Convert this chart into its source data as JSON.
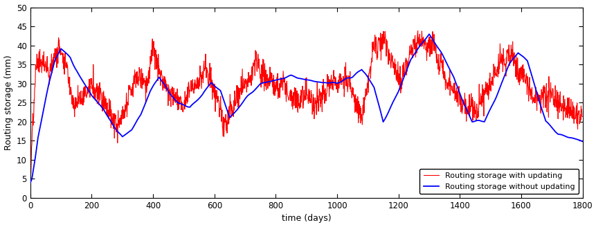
{
  "xlabel": "time (days)",
  "ylabel": "Routing storage (mm)",
  "xlim": [
    0,
    1800
  ],
  "ylim": [
    0,
    50
  ],
  "xticks": [
    0,
    200,
    400,
    600,
    800,
    1000,
    1200,
    1400,
    1600,
    1800
  ],
  "yticks": [
    0,
    5,
    10,
    15,
    20,
    25,
    30,
    35,
    40,
    45,
    50
  ],
  "blue_color": "#0000FF",
  "red_color": "#FF0000",
  "legend_blue": "Routing storage without updating",
  "legend_red": "Routing storage with updating",
  "linewidth_blue": 1.3,
  "linewidth_red": 0.8,
  "background_color": "#FFFFFF"
}
